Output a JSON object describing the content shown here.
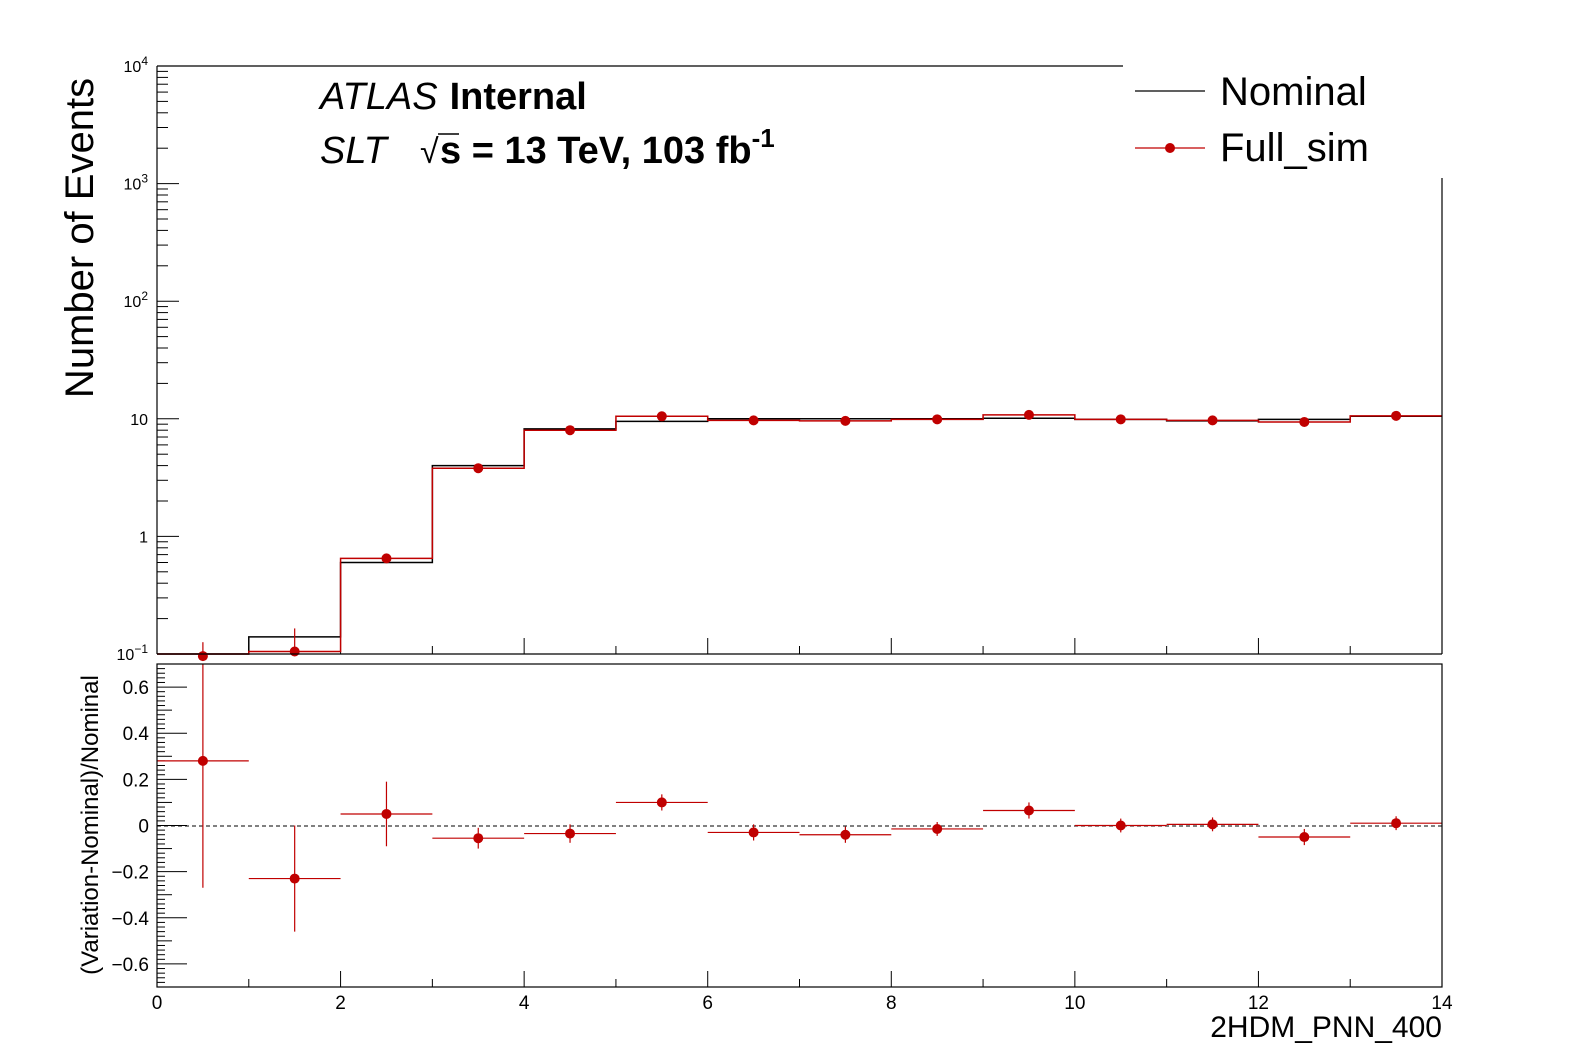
{
  "chart_data": [
    {
      "type": "line",
      "panel": "main",
      "ylabel": "Number of Events",
      "yscale": "log",
      "xlim": [
        0,
        14
      ],
      "ylim": [
        0.1,
        10000
      ],
      "ytick_labels": [
        {
          "value": 0.1,
          "base": "10",
          "exp": "−1"
        },
        {
          "value": 1,
          "base": "1",
          "exp": ""
        },
        {
          "value": 10,
          "base": "10",
          "exp": ""
        },
        {
          "value": 100,
          "base": "10",
          "exp": "2"
        },
        {
          "value": 1000,
          "base": "10",
          "exp": "3"
        },
        {
          "value": 10000,
          "base": "10",
          "exp": "4"
        }
      ],
      "bin_edges": [
        0,
        1,
        2,
        3,
        4,
        5,
        6,
        7,
        8,
        9,
        10,
        11,
        12,
        13,
        14
      ],
      "series": [
        {
          "name": "Nominal",
          "style": "step",
          "color": "#000000",
          "values": [
            0.075,
            0.14,
            0.6,
            4.0,
            8.2,
            9.5,
            10.0,
            10.0,
            10.0,
            10.1,
            9.9,
            9.6,
            9.9,
            10.5
          ]
        },
        {
          "name": "Full_sim",
          "style": "step-markers",
          "color": "#c00000",
          "values": [
            0.096,
            0.105,
            0.65,
            3.8,
            8.0,
            10.5,
            9.7,
            9.6,
            9.9,
            10.8,
            9.9,
            9.7,
            9.4,
            10.6
          ],
          "errors": [
            0.03,
            0.06,
            0.05,
            0.3,
            0.4,
            0.6,
            0.4,
            0.4,
            0.4,
            0.6,
            0.4,
            0.4,
            0.5,
            0.6
          ]
        }
      ],
      "legend": {
        "position": "top-right",
        "entries": [
          {
            "label": "Nominal",
            "style": "line"
          },
          {
            "label": "Full_sim",
            "style": "marker-line"
          }
        ]
      },
      "annotations": {
        "atlas": "ATLAS",
        "status": "Internal",
        "channel": "SLT",
        "sqrt_symbol": "√",
        "energy": "s = 13 TeV, 103 fb",
        "lumi_exp": "-1"
      }
    },
    {
      "type": "scatter",
      "panel": "ratio",
      "ylabel": "(Variation-Nominal)/Nominal",
      "xlabel": "2HDM_PNN_400",
      "xlim": [
        0,
        14
      ],
      "ylim": [
        -0.7,
        0.7
      ],
      "xticks": [
        0,
        2,
        4,
        6,
        8,
        10,
        12,
        14
      ],
      "yticks": [
        -0.6,
        -0.4,
        -0.2,
        0,
        0.2,
        0.4,
        0.6
      ],
      "ytick_labels": [
        "−0.6",
        "−0.4",
        "−0.2",
        "0",
        "0.2",
        "0.4",
        "0.6"
      ],
      "reference_line": 0,
      "series": [
        {
          "name": "Full_sim",
          "color": "#c00000",
          "x": [
            0.5,
            1.5,
            2.5,
            3.5,
            4.5,
            5.5,
            6.5,
            7.5,
            8.5,
            9.5,
            10.5,
            11.5,
            12.5,
            13.5
          ],
          "y": [
            0.28,
            -0.23,
            0.05,
            -0.055,
            -0.035,
            0.1,
            -0.03,
            -0.04,
            -0.015,
            0.065,
            0.0,
            0.005,
            -0.05,
            0.01
          ],
          "yerr": [
            0.55,
            0.23,
            0.14,
            0.045,
            0.04,
            0.035,
            0.035,
            0.035,
            0.03,
            0.035,
            0.03,
            0.03,
            0.035,
            0.03
          ]
        }
      ]
    }
  ]
}
